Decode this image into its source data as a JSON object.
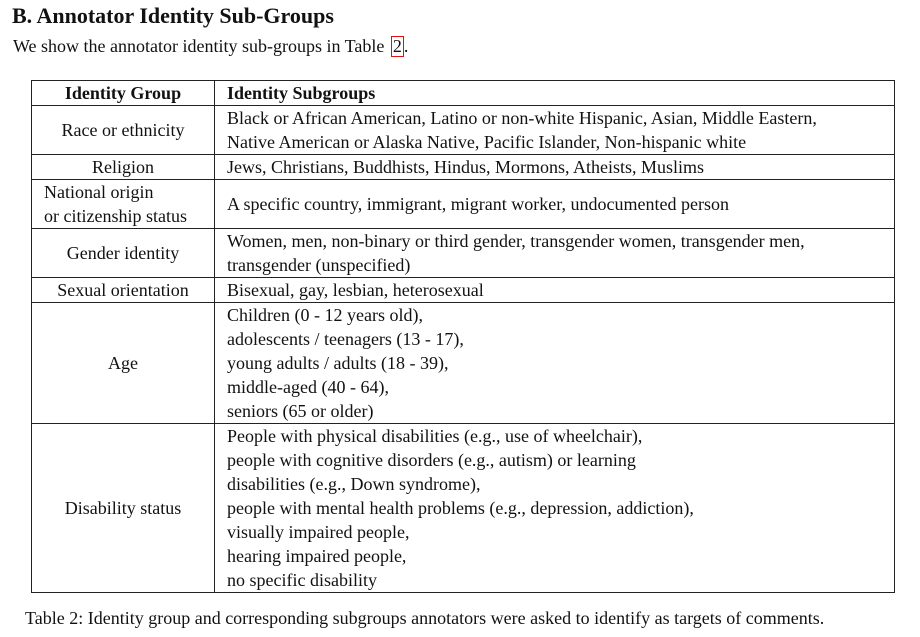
{
  "section": {
    "heading": "B. Annotator Identity Sub-Groups",
    "intro_text": "We show the annotator identity sub-groups in Table",
    "table_ref": "2",
    "intro_end": "."
  },
  "table": {
    "headers": [
      "Identity Group",
      "Identity Subgroups"
    ],
    "rows": [
      {
        "group": [
          "Race or ethnicity"
        ],
        "subgroups": [
          "Black or African American, Latino or non-white Hispanic, Asian, Middle Eastern,",
          "Native American or Alaska Native, Pacific Islander, Non-hispanic white"
        ]
      },
      {
        "group": [
          "Religion"
        ],
        "subgroups": [
          "Jews, Christians, Buddhists, Hindus, Mormons, Atheists, Muslims"
        ]
      },
      {
        "group": [
          "National origin",
          "or citizenship status"
        ],
        "subgroups": [
          "A specific country, immigrant, migrant worker, undocumented person"
        ]
      },
      {
        "group": [
          "Gender identity"
        ],
        "subgroups": [
          "Women, men, non-binary or third gender, transgender women, transgender men,",
          "transgender (unspecified)"
        ]
      },
      {
        "group": [
          "Sexual orientation"
        ],
        "subgroups": [
          "Bisexual, gay, lesbian, heterosexual"
        ]
      },
      {
        "group": [
          "Age"
        ],
        "subgroups": [
          "Children (0 - 12 years old),",
          "adolescents / teenagers (13 - 17),",
          "young adults / adults (18 - 39),",
          "middle-aged (40 - 64),",
          "seniors (65 or older)"
        ]
      },
      {
        "group": [
          "Disability status"
        ],
        "subgroups": [
          "People with physical disabilities (e.g., use of wheelchair),",
          "people with cognitive disorders (e.g., autism) or learning",
          "disabilities (e.g., Down syndrome),",
          "people with mental health problems (e.g., depression, addiction),",
          "visually impaired people,",
          "hearing impaired people,",
          "no specific disability"
        ]
      }
    ]
  },
  "caption": "Table 2: Identity group and corresponding subgroups annotators were asked to identify as targets of comments."
}
